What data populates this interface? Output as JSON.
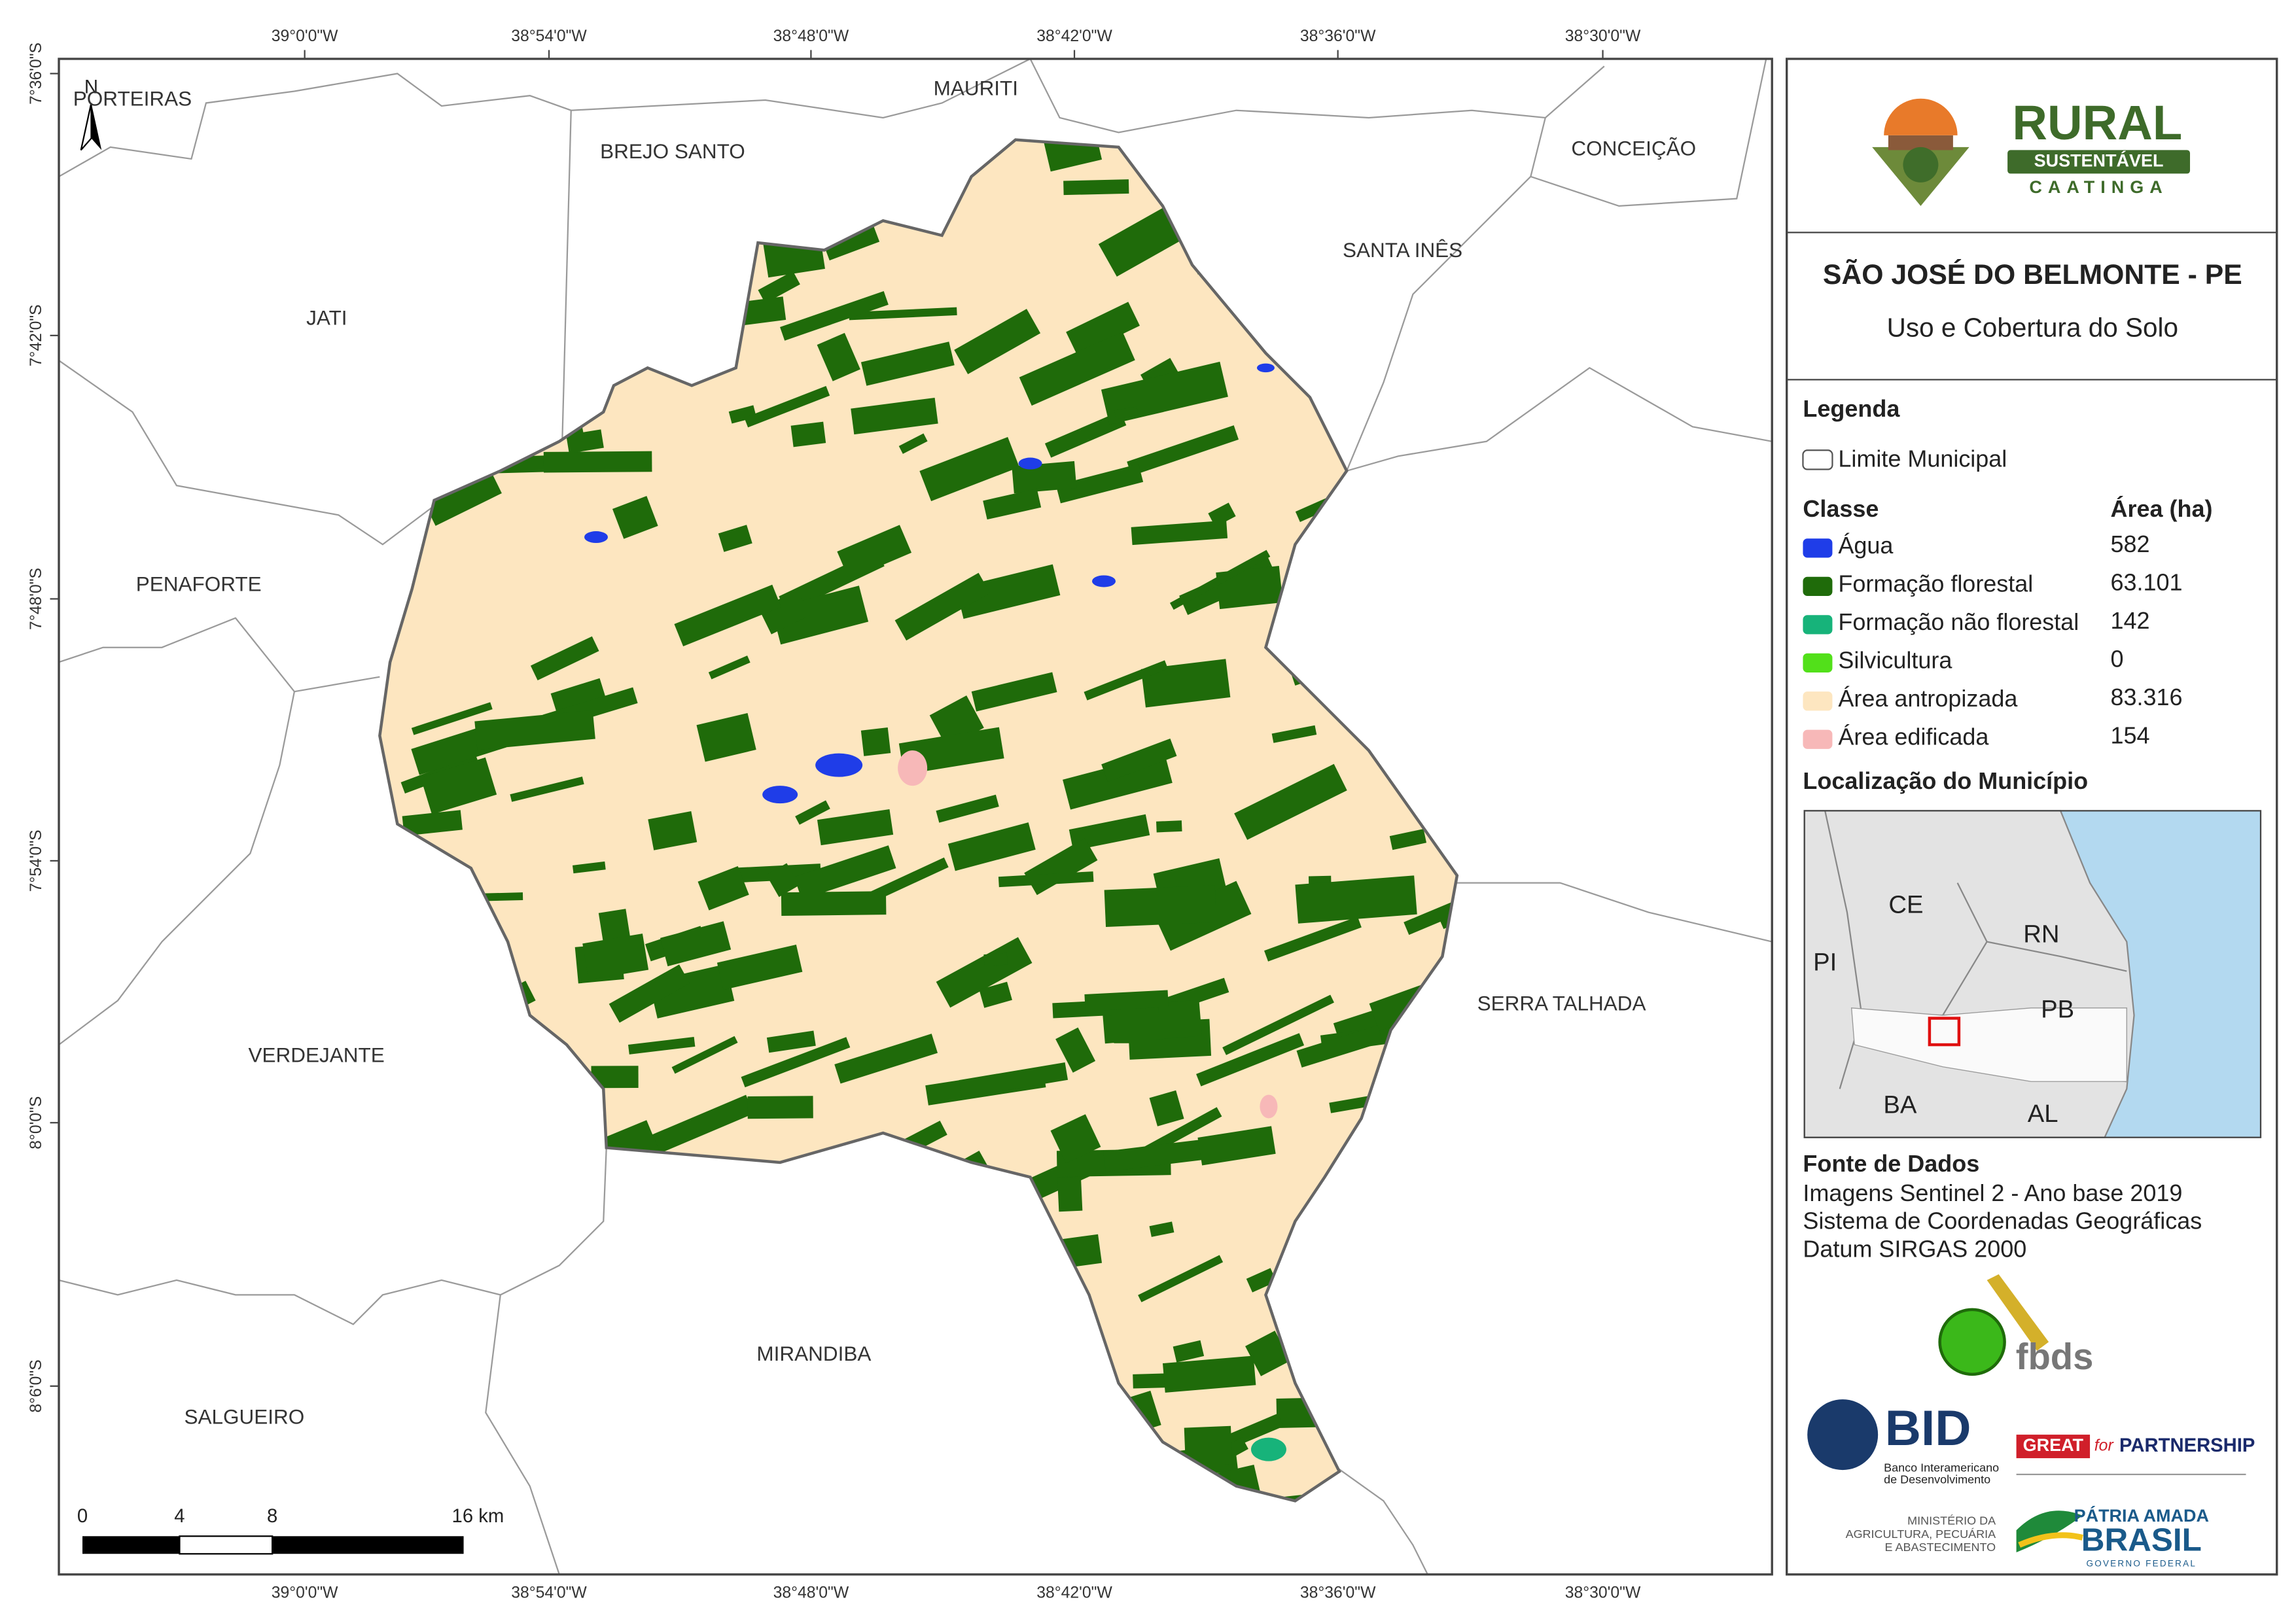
{
  "map": {
    "coordinates": {
      "longitudes": [
        "39°0'0\"W",
        "38°54'0\"W",
        "38°48'0\"W",
        "38°42'0\"W",
        "38°36'0\"W",
        "38°30'0\"W"
      ],
      "latitudes": [
        "7°36'0\"S",
        "7°42'0\"S",
        "7°48'0\"S",
        "7°54'0\"S",
        "8°0'0\"S",
        "8°6'0\"S"
      ]
    },
    "north": "N",
    "municipalities": [
      "PORTEIRAS",
      "MAURITI",
      "BREJO SANTO",
      "CONCEIÇÃO",
      "SANTA INÊS",
      "JATI",
      "PENAFORTE",
      "SERRA TALHADA",
      "VERDEJANTE",
      "MIRANDIBA",
      "SALGUEIRO"
    ],
    "scale": [
      "0",
      "4",
      "8",
      "16 km"
    ]
  },
  "panel": {
    "logo": {
      "rural": "RURAL",
      "sustentavel": "SUSTENTÁVEL",
      "caatinga": "CAATINGA"
    },
    "title": "SÃO JOSÉ DO BELMONTE - PE",
    "subtitle": "Uso e Cobertura do Solo",
    "legend": {
      "heading": "Legenda",
      "limit": "Limite Municipal",
      "class_header": "Classe",
      "area_header": "Área (ha)",
      "items": [
        {
          "label": "Água",
          "color": "#1f3de8",
          "area": "582"
        },
        {
          "label": "Formação florestal",
          "color": "#1f6b0a",
          "area": "63.101"
        },
        {
          "label": "Formação não florestal",
          "color": "#17b37a",
          "area": "142"
        },
        {
          "label": "Silvicultura",
          "color": "#52e01a",
          "area": "0"
        },
        {
          "label": "Área antropizada",
          "color": "#fde6c0",
          "area": "83.316"
        },
        {
          "label": "Área edificada",
          "color": "#f7b8b8",
          "area": "154"
        }
      ]
    },
    "location": {
      "heading": "Localização do Município",
      "states": [
        "CE",
        "RN",
        "PI",
        "PB",
        "BA",
        "AL"
      ]
    },
    "sources": {
      "heading": "Fonte de Dados",
      "lines": [
        "Imagens Sentinel 2 - Ano base 2019",
        "Sistema de Coordenadas Geográficas",
        "Datum SIRGAS 2000"
      ]
    },
    "partners": {
      "fbds": "fbds",
      "bid": "BID",
      "bid_name": [
        "Banco Interamericano",
        "de Desenvolvimento"
      ],
      "great": "GREAT",
      "for": "for",
      "partnership": "PARTNERSHIP",
      "ministry": [
        "MINISTÉRIO DA",
        "AGRICULTURA, PECUÁRIA",
        "E ABASTECIMENTO"
      ],
      "patria": "PÁTRIA AMADA",
      "brasil": "BRASIL",
      "governo": "GOVERNO FEDERAL"
    }
  }
}
